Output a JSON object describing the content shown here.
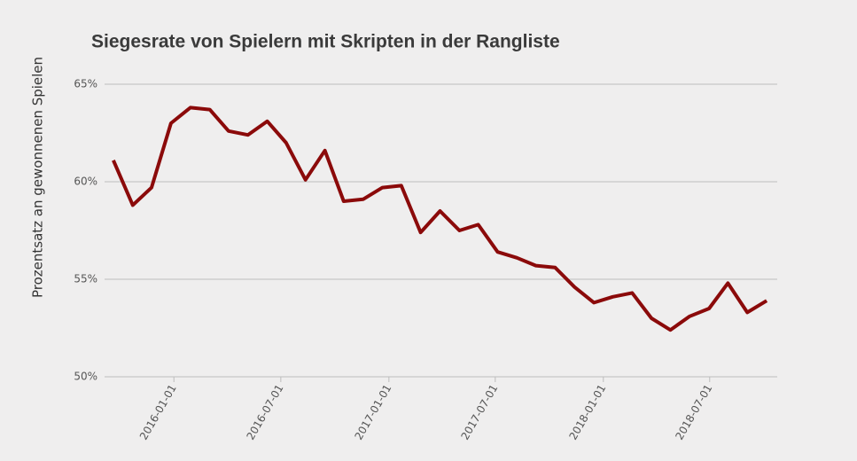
{
  "chart_data": {
    "type": "line",
    "title": "Siegesrate von Spielern mit Skripten in der Rangliste",
    "y_label": "Prozentsatz an gewonnenen Spielen",
    "x": [
      "2015-09-20",
      "2015-10-23",
      "2015-11-24",
      "2015-12-27",
      "2016-01-29",
      "2016-03-02",
      "2016-04-03",
      "2016-05-06",
      "2016-06-08",
      "2016-07-10",
      "2016-08-12",
      "2016-09-14",
      "2016-10-16",
      "2016-11-18",
      "2016-12-21",
      "2017-01-22",
      "2017-02-24",
      "2017-03-29",
      "2017-05-01",
      "2017-06-02",
      "2017-07-05",
      "2017-08-07",
      "2017-09-08",
      "2017-10-11",
      "2017-11-13",
      "2017-12-16",
      "2018-01-17",
      "2018-02-19",
      "2018-03-24",
      "2018-04-25",
      "2018-05-28",
      "2018-06-30",
      "2018-08-01",
      "2018-09-03",
      "2018-10-06"
    ],
    "series": [
      {
        "color": "#8b0a0a",
        "values": [
          61.1,
          58.8,
          59.7,
          63.0,
          63.8,
          63.7,
          62.6,
          62.4,
          63.1,
          62.0,
          60.1,
          61.6,
          59.0,
          59.1,
          59.7,
          59.8,
          57.4,
          58.5,
          57.5,
          57.8,
          56.4,
          56.1,
          55.7,
          55.6,
          54.6,
          53.8,
          54.1,
          54.3,
          53.0,
          52.4,
          53.1,
          53.5,
          54.8,
          53.3,
          53.9
        ]
      }
    ],
    "xlim": [
      "2015-09-05",
      "2018-10-24"
    ],
    "xticks": [
      "2016-01-01",
      "2016-07-01",
      "2017-01-01",
      "2017-07-01",
      "2018-01-01",
      "2018-07-01"
    ],
    "ylim": [
      50,
      65
    ],
    "yticks": [
      {
        "value": 50,
        "label": "50%"
      },
      {
        "value": 55,
        "label": "55%"
      },
      {
        "value": 60,
        "label": "60%"
      },
      {
        "value": 65,
        "label": "65%"
      }
    ],
    "grid": true
  }
}
